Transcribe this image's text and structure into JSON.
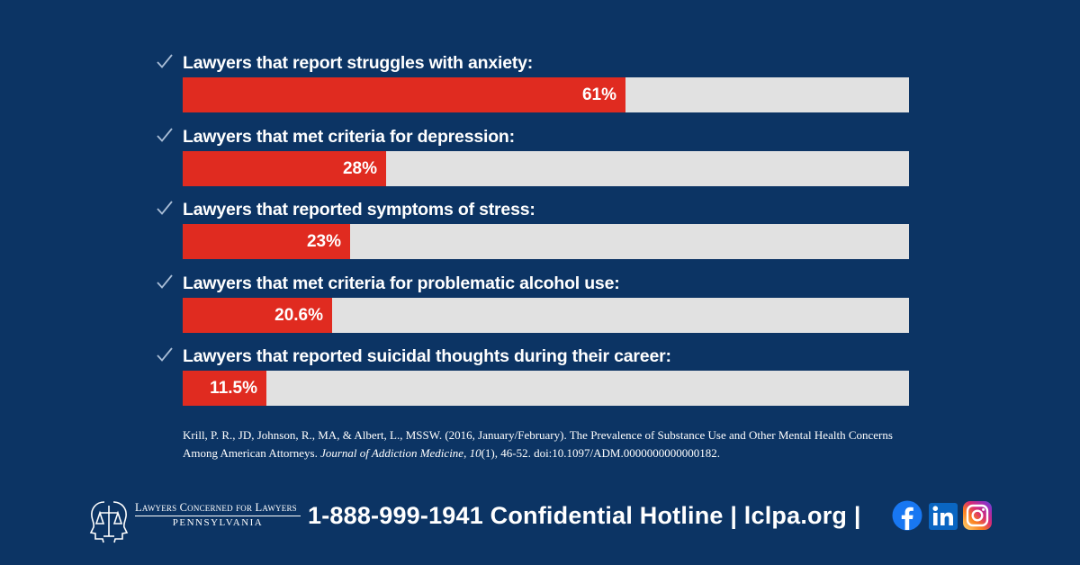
{
  "chart_data": {
    "type": "bar",
    "orientation": "horizontal",
    "categories": [
      "Lawyers that report struggles with anxiety:",
      "Lawyers that met criteria for depression:",
      "Lawyers that reported symptoms of stress:",
      "Lawyers that met criteria for problematic alcohol use:",
      "Lawyers that reported suicidal thoughts during their career:"
    ],
    "values": [
      61,
      28,
      23,
      20.6,
      11.5
    ],
    "value_labels": [
      "61%",
      "28%",
      "23%",
      "20.6%",
      "11.5%"
    ],
    "xlim": [
      0,
      100
    ],
    "title": "",
    "xlabel": "",
    "ylabel": "",
    "grid": false,
    "colors": {
      "bar": "#e02b20",
      "track": "#e1e1e1",
      "check": "#a9bdd6"
    }
  },
  "citation": {
    "part1": "Krill, P. R., JD, Johnson, R., MA, & Albert, L., MSSW. (2016, January/February). The Prevalence of Substance Use and Other Mental Health Concerns Among American Attorneys. ",
    "journal": "Journal of Addiction Medicine",
    "part2": ", ",
    "volume": "10",
    "part3": "(1), 46-52. doi:10.1097/ADM.0000000000000182."
  },
  "footer": {
    "org_line1": "Lawyers Concerned for Lawyers",
    "org_line2": "PENNSYLVANIA",
    "hotline": "1-888-999-1941 Confidential Hotline | lclpa.org |",
    "icons": [
      "lcl-logo-icon",
      "facebook-icon",
      "linkedin-icon",
      "instagram-icon"
    ]
  },
  "colors": {
    "background": "#0c3464",
    "accent": "#e02b20"
  }
}
